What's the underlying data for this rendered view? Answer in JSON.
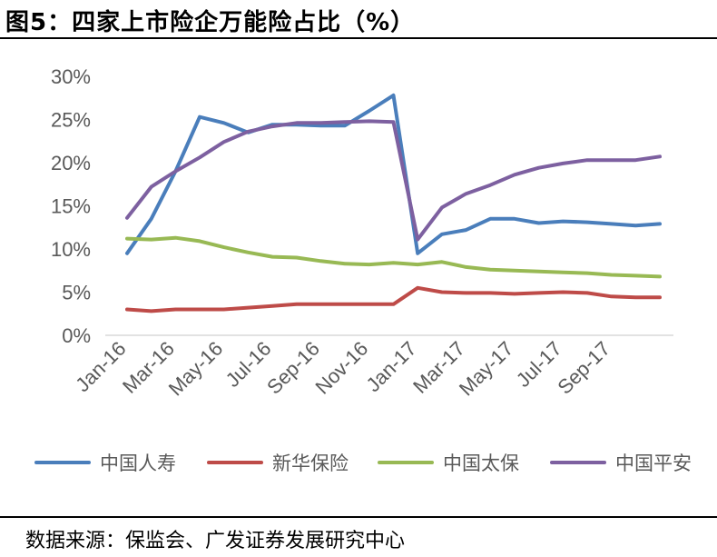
{
  "figure": {
    "title": "图5：四家上市险企万能险占比（%）",
    "source": "数据来源：保监会、广发证券发展研究中心"
  },
  "chart_data": {
    "type": "line",
    "title": "",
    "xlabel": "",
    "ylabel": "",
    "ylim": [
      0,
      30
    ],
    "y_ticks": [
      "0%",
      "5%",
      "10%",
      "15%",
      "20%",
      "25%",
      "30%"
    ],
    "y_tick_values": [
      0,
      5,
      10,
      15,
      20,
      25,
      30
    ],
    "x_tick_labels": [
      "Jan-16",
      "Mar-16",
      "May-16",
      "Jul-16",
      "Sep-16",
      "Nov-16",
      "Jan-17",
      "Mar-17",
      "May-17",
      "Jul-17",
      "Sep-17"
    ],
    "x": [
      "Jan-16",
      "Feb-16",
      "Mar-16",
      "Apr-16",
      "May-16",
      "Jun-16",
      "Jul-16",
      "Aug-16",
      "Sep-16",
      "Oct-16",
      "Nov-16",
      "Dec-16",
      "Jan-17",
      "Feb-17",
      "Mar-17",
      "Apr-17",
      "May-17",
      "Jun-17",
      "Jul-17",
      "Aug-17",
      "Sep-17",
      "Oct-17",
      "Nov-17"
    ],
    "grid": false,
    "legend_position": "bottom",
    "series": [
      {
        "name": "中国人寿",
        "color": "#4a7ebb",
        "values": [
          9.5,
          13.5,
          19.0,
          25.3,
          24.6,
          23.5,
          24.4,
          24.4,
          24.3,
          24.3,
          26.0,
          27.8,
          9.5,
          11.7,
          12.2,
          13.5,
          13.5,
          13.0,
          13.2,
          13.1,
          12.9,
          12.7,
          12.9
        ]
      },
      {
        "name": "新华保险",
        "color": "#be4b48",
        "values": [
          3.0,
          2.8,
          3.0,
          3.0,
          3.0,
          3.2,
          3.4,
          3.6,
          3.6,
          3.6,
          3.6,
          3.6,
          5.5,
          5.0,
          4.9,
          4.9,
          4.8,
          4.9,
          5.0,
          4.9,
          4.5,
          4.4,
          4.4
        ]
      },
      {
        "name": "中国太保",
        "color": "#98b954",
        "values": [
          11.2,
          11.1,
          11.3,
          10.9,
          10.2,
          9.6,
          9.1,
          9.0,
          8.6,
          8.3,
          8.2,
          8.4,
          8.2,
          8.5,
          7.9,
          7.6,
          7.5,
          7.4,
          7.3,
          7.2,
          7.0,
          6.9,
          6.8
        ]
      },
      {
        "name": "中国平安",
        "color": "#7d60a0",
        "values": [
          13.6,
          17.2,
          19.0,
          20.6,
          22.4,
          23.6,
          24.2,
          24.6,
          24.6,
          24.7,
          24.8,
          24.7,
          11.1,
          14.8,
          16.4,
          17.4,
          18.6,
          19.4,
          19.9,
          20.3,
          20.3,
          20.3,
          20.7
        ]
      }
    ]
  }
}
